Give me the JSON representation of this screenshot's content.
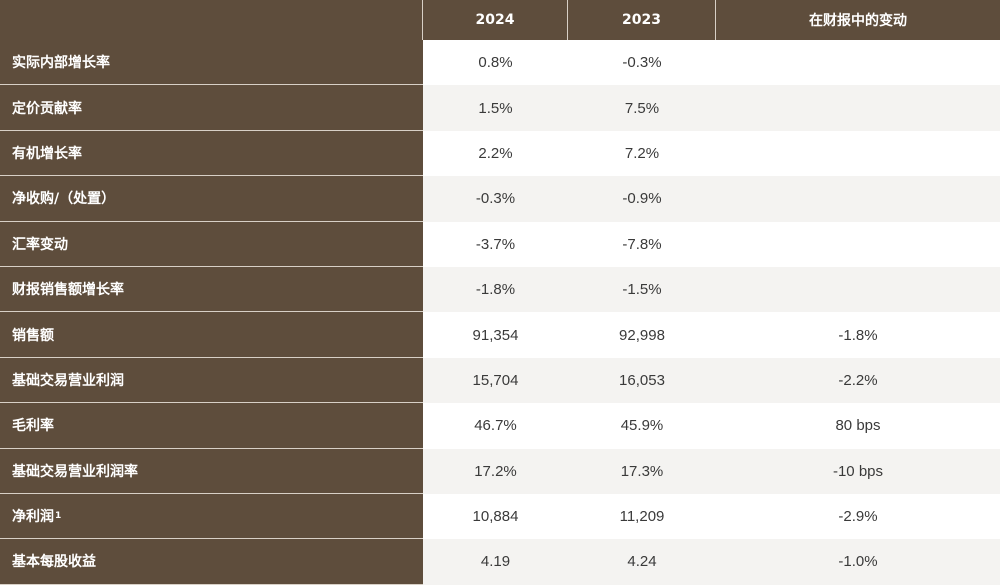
{
  "header": [
    "",
    "2024",
    "2023",
    "在财报中的变动"
  ],
  "rows": [
    {
      "label": "实际内部增长率",
      "sup": "",
      "y2024": "0.8%",
      "y2023": "-0.3%",
      "change": ""
    },
    {
      "label": "定价贡献率",
      "sup": "",
      "y2024": "1.5%",
      "y2023": "7.5%",
      "change": ""
    },
    {
      "label": "有机增长率",
      "sup": "",
      "y2024": "2.2%",
      "y2023": "7.2%",
      "change": ""
    },
    {
      "label": "净收购/（处置）",
      "sup": "",
      "y2024": "-0.3%",
      "y2023": "-0.9%",
      "change": ""
    },
    {
      "label": "汇率变动",
      "sup": "",
      "y2024": "-3.7%",
      "y2023": "-7.8%",
      "change": ""
    },
    {
      "label": "财报销售额增长率",
      "sup": "",
      "y2024": "-1.8%",
      "y2023": "-1.5%",
      "change": ""
    },
    {
      "label": "销售额",
      "sup": "",
      "y2024": "91,354",
      "y2023": "92,998",
      "change": "-1.8%"
    },
    {
      "label": "基础交易营业利润",
      "sup": "",
      "y2024": "15,704",
      "y2023": "16,053",
      "change": "-2.2%"
    },
    {
      "label": "毛利率",
      "sup": "",
      "y2024": "46.7%",
      "y2023": "45.9%",
      "change": "80 bps"
    },
    {
      "label": "基础交易营业利润率",
      "sup": "",
      "y2024": "17.2%",
      "y2023": "17.3%",
      "change": "-10 bps"
    },
    {
      "label": "净利润",
      "sup": "1",
      "y2024": "10,884",
      "y2023": "11,209",
      "change": "-2.9%"
    },
    {
      "label": "基本每股收益",
      "sup": "",
      "y2024": "4.19",
      "y2023": "4.24",
      "change": "-1.0%"
    }
  ],
  "colors": {
    "header_bg": "#5e4d3c",
    "stripe": "#f4f3f1"
  }
}
